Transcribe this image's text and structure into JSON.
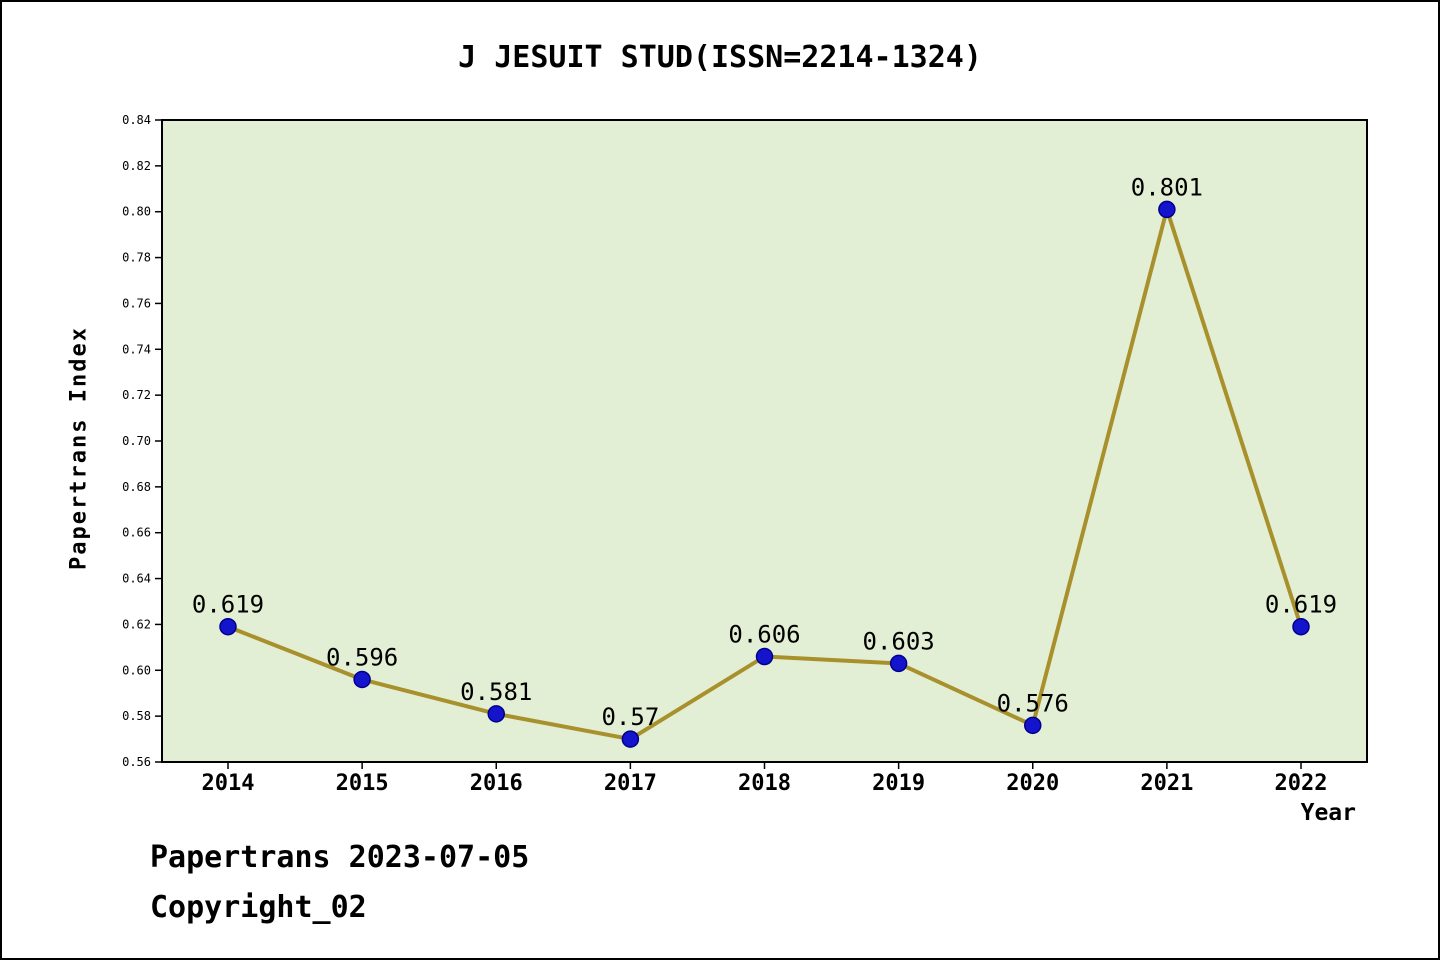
{
  "title": "J JESUIT STUD(ISSN=2214-1324)",
  "footer": {
    "line1": "Papertrans 2023-07-05",
    "line2": "Copyright_02"
  },
  "chart_data": {
    "type": "line",
    "title": "J JESUIT STUD(ISSN=2214-1324)",
    "xlabel": "Year",
    "ylabel": "Papertrans Index",
    "categories": [
      "2014",
      "2015",
      "2016",
      "2017",
      "2018",
      "2019",
      "2020",
      "2021",
      "2022"
    ],
    "values": [
      0.619,
      0.596,
      0.581,
      0.57,
      0.606,
      0.603,
      0.576,
      0.801,
      0.619
    ],
    "labels": [
      "0.619",
      "0.596",
      "0.581",
      "0.57",
      "0.606",
      "0.603",
      "0.576",
      "0.801",
      "0.619"
    ],
    "ylim": [
      0.56,
      0.84
    ],
    "ytick_step": 0.02,
    "grid": false,
    "legend": "none",
    "colors": {
      "line": "#a8912c",
      "marker": "#1414cc",
      "marker_edge": "#00008b",
      "plot_bg": "#e3efd4",
      "axis": "#000000"
    }
  }
}
